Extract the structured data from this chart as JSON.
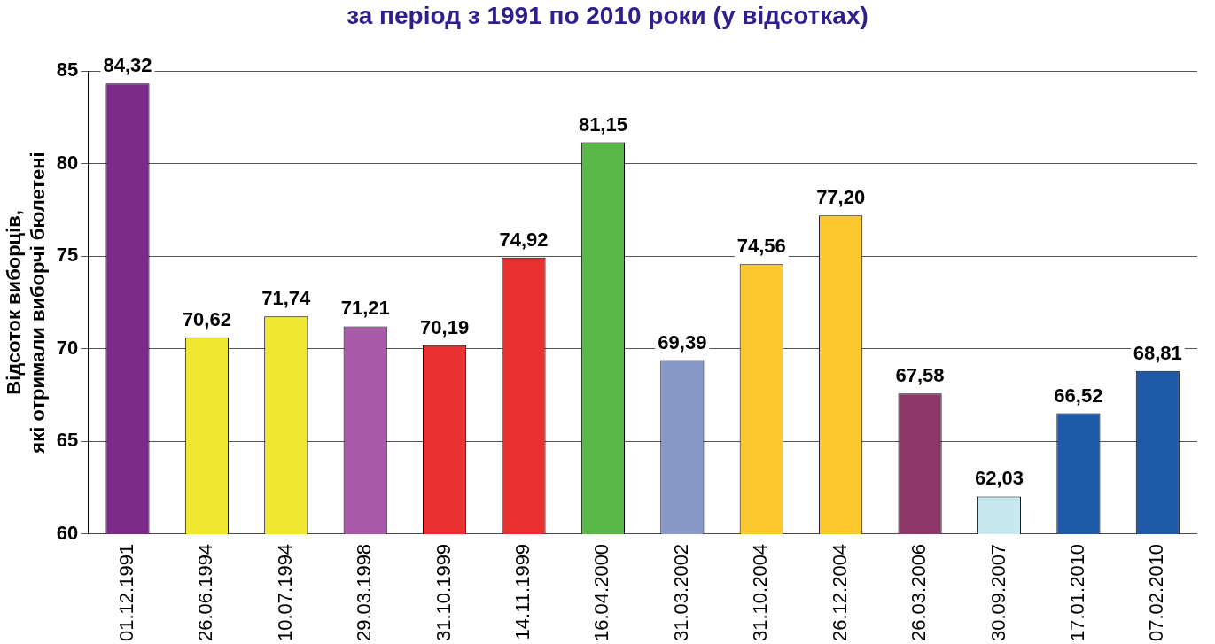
{
  "chart_data": {
    "type": "bar",
    "title": "за період з 1991 по 2010 роки (у відсотках)",
    "ylabel": "Відсоток виборців,\nякі отримали виборчі бюлетені",
    "categories": [
      "01.12.1991",
      "26.06.1994",
      "10.07.1994",
      "29.03.1998",
      "31.10.1999",
      "14.11.1999",
      "16.04.2000",
      "31.03.2002",
      "31.10.2004",
      "26.12.2004",
      "26.03.2006",
      "30.09.2007",
      "17.01.2010",
      "07.02.2010"
    ],
    "values": [
      84.32,
      70.62,
      71.74,
      71.21,
      70.19,
      74.92,
      81.15,
      69.39,
      74.56,
      77.2,
      67.58,
      62.03,
      66.52,
      68.81
    ],
    "value_labels": [
      "84,32",
      "70,62",
      "71,74",
      "71,21",
      "70,19",
      "74,92",
      "81,15",
      "69,39",
      "74,56",
      "77,20",
      "67,58",
      "62,03",
      "66,52",
      "68,81"
    ],
    "colors": [
      "#7b2a8a",
      "#f0e830",
      "#f0e830",
      "#a85aa8",
      "#e83030",
      "#e83030",
      "#58b848",
      "#8898c8",
      "#fcc830",
      "#fcc830",
      "#8c3868",
      "#c8e8f0",
      "#1e5aa8",
      "#1e5aa8"
    ],
    "ylim": [
      60,
      85
    ],
    "yticks": [
      60,
      65,
      70,
      75,
      80,
      85
    ],
    "grid": "y"
  }
}
